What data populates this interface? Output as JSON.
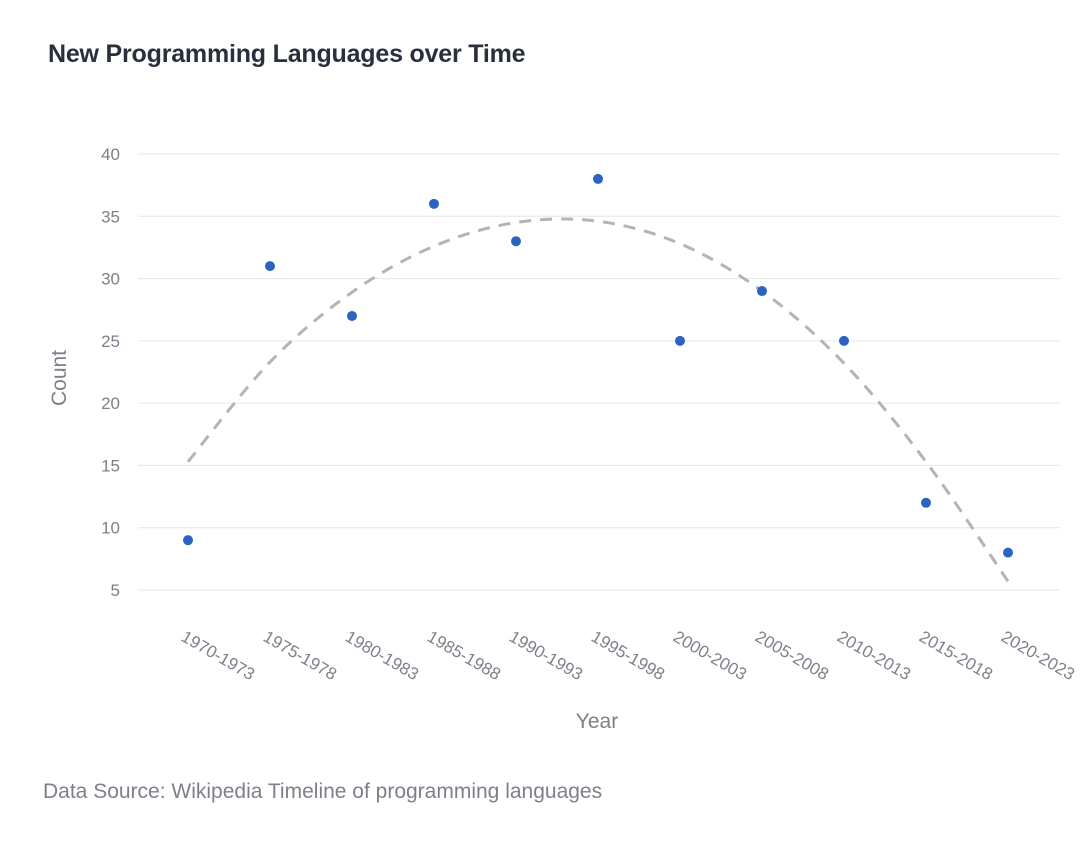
{
  "chart_data": {
    "type": "scatter",
    "title": "New Programming Languages over Time",
    "xlabel": "Year",
    "ylabel": "Count",
    "categories": [
      "1970-1973",
      "1975-1978",
      "1980-1983",
      "1985-1988",
      "1990-1993",
      "1995-1998",
      "2000-2003",
      "2005-2008",
      "2010-2013",
      "2015-2018",
      "2020-2023"
    ],
    "series": [
      {
        "values": [
          9,
          31,
          27,
          36,
          33,
          38,
          25,
          29,
          25,
          12,
          8
        ],
        "color": "#2b63c0"
      }
    ],
    "trendline": {
      "style": "dashed",
      "color": "#b4b4b4",
      "values": [
        15.3,
        23.3,
        28.9,
        32.6,
        34.5,
        34.6,
        32.8,
        29.0,
        23.2,
        15.3,
        5.7
      ]
    },
    "yticks": [
      5,
      10,
      15,
      20,
      25,
      30,
      35,
      40
    ],
    "ylim": [
      2.5,
      41
    ],
    "grid": true,
    "legend": "none"
  },
  "footer": {
    "source": "Data Source: Wikipedia Timeline of programming languages"
  }
}
